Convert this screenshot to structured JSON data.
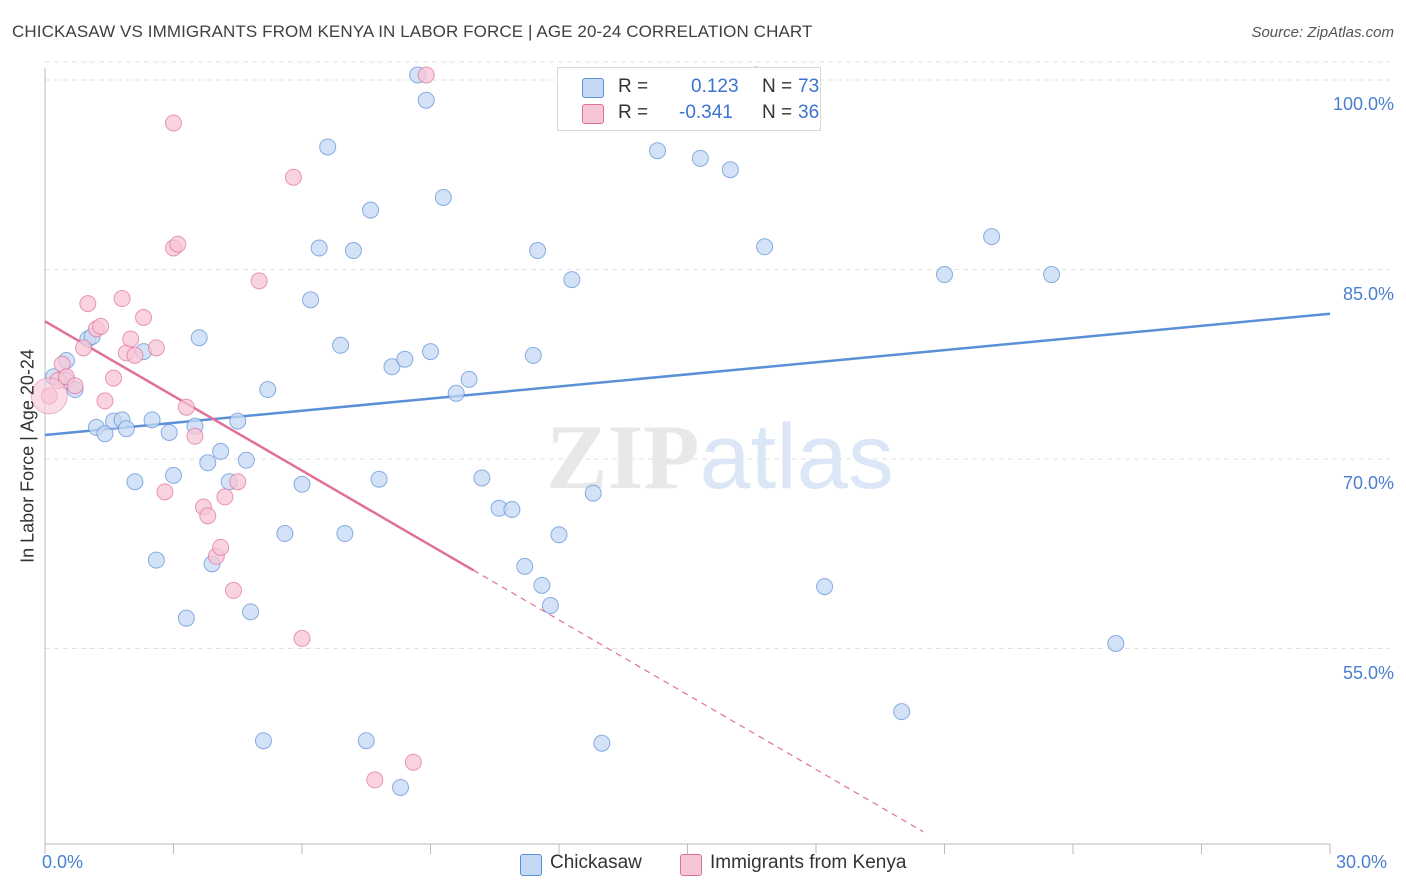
{
  "title": "CHICKASAW VS IMMIGRANTS FROM KENYA IN LABOR FORCE | AGE 20-24 CORRELATION CHART",
  "source": "Source: ZipAtlas.com",
  "watermark": "ZIPatlas",
  "colors": {
    "blue": "#5b8fd6",
    "blue_fill": "#c5d8f4",
    "pink": "#e0709a",
    "pink_fill": "#f7c6d6",
    "axis_text": "#4a7fd0"
  },
  "legend_top": [
    {
      "r_label": "R =",
      "r": "0.123",
      "n_label": "N =",
      "n": "73"
    },
    {
      "r_label": "R =",
      "r": "-0.341",
      "n_label": "N =",
      "n": "36"
    }
  ],
  "chart_data": {
    "type": "scatter",
    "ylabel": "In Labor Force | Age 20-24",
    "xlim": [
      0,
      30
    ],
    "ylim": [
      40,
      100
    ],
    "x_tick_labels": [
      "0.0%",
      "30.0%"
    ],
    "y_tick_values": [
      55,
      70,
      85,
      100
    ],
    "y_tick_labels": [
      "55.0%",
      "70.0%",
      "85.0%",
      "100.0%"
    ],
    "grid": true,
    "legend_position": "bottom",
    "series": [
      {
        "name": "Chickasaw",
        "color": "#5b8fd6",
        "trend": {
          "x": [
            0,
            30
          ],
          "y": [
            71.9,
            81.5
          ]
        },
        "points": [
          [
            0.2,
            76.5
          ],
          [
            0.5,
            76.2
          ],
          [
            0.5,
            77.8
          ],
          [
            0.7,
            75.5
          ],
          [
            1.0,
            79.5
          ],
          [
            1.1,
            79.7
          ],
          [
            1.2,
            72.5
          ],
          [
            1.4,
            72.0
          ],
          [
            1.6,
            73.0
          ],
          [
            1.8,
            73.1
          ],
          [
            1.9,
            72.4
          ],
          [
            2.1,
            68.2
          ],
          [
            2.3,
            78.5
          ],
          [
            2.5,
            73.1
          ],
          [
            2.6,
            62.0
          ],
          [
            2.9,
            72.1
          ],
          [
            3.0,
            68.7
          ],
          [
            3.3,
            57.4
          ],
          [
            3.5,
            72.6
          ],
          [
            3.6,
            79.6
          ],
          [
            3.8,
            69.7
          ],
          [
            3.9,
            61.7
          ],
          [
            4.1,
            70.6
          ],
          [
            4.3,
            68.2
          ],
          [
            4.5,
            73.0
          ],
          [
            4.7,
            69.9
          ],
          [
            4.8,
            57.9
          ],
          [
            5.1,
            47.7
          ],
          [
            5.2,
            75.5
          ],
          [
            5.6,
            64.1
          ],
          [
            6.0,
            68.0
          ],
          [
            6.2,
            82.6
          ],
          [
            6.4,
            86.7
          ],
          [
            6.6,
            94.7
          ],
          [
            6.9,
            79.0
          ],
          [
            7.0,
            64.1
          ],
          [
            7.2,
            86.5
          ],
          [
            7.5,
            47.7
          ],
          [
            7.6,
            89.7
          ],
          [
            7.8,
            68.4
          ],
          [
            8.1,
            77.3
          ],
          [
            8.3,
            44.0
          ],
          [
            8.4,
            77.9
          ],
          [
            8.7,
            100.4
          ],
          [
            8.9,
            98.4
          ],
          [
            9.0,
            78.5
          ],
          [
            9.3,
            90.7
          ],
          [
            9.6,
            75.2
          ],
          [
            9.9,
            76.3
          ],
          [
            10.2,
            68.5
          ],
          [
            10.6,
            66.1
          ],
          [
            10.9,
            66.0
          ],
          [
            11.2,
            61.5
          ],
          [
            11.4,
            78.2
          ],
          [
            11.5,
            86.5
          ],
          [
            11.6,
            60.0
          ],
          [
            11.8,
            58.4
          ],
          [
            12.0,
            64.0
          ],
          [
            12.3,
            84.2
          ],
          [
            13.0,
            47.5
          ],
          [
            13.5,
            100.3
          ],
          [
            14.3,
            94.4
          ],
          [
            15.3,
            93.8
          ],
          [
            16.0,
            92.9
          ],
          [
            16.6,
            100.4
          ],
          [
            16.8,
            86.8
          ],
          [
            18.2,
            59.9
          ],
          [
            20.0,
            50.0
          ],
          [
            21.0,
            84.6
          ],
          [
            22.1,
            87.6
          ],
          [
            23.5,
            84.6
          ],
          [
            25.0,
            55.4
          ],
          [
            12.8,
            67.3
          ]
        ]
      },
      {
        "name": "Immigrants from Kenya",
        "color": "#e0709a",
        "trend": {
          "x": [
            0,
            10
          ],
          "y": [
            80.9,
            61.2
          ]
        },
        "trend_dashed": {
          "x": [
            10,
            20.5
          ],
          "y": [
            61.2,
            40.5
          ]
        },
        "points": [
          [
            0.1,
            75.0
          ],
          [
            0.3,
            76.2
          ],
          [
            0.4,
            77.5
          ],
          [
            0.5,
            76.5
          ],
          [
            0.7,
            75.8
          ],
          [
            0.9,
            78.8
          ],
          [
            1.0,
            82.3
          ],
          [
            1.2,
            80.3
          ],
          [
            1.3,
            80.5
          ],
          [
            1.4,
            74.6
          ],
          [
            1.6,
            76.4
          ],
          [
            1.8,
            82.7
          ],
          [
            1.9,
            78.4
          ],
          [
            2.0,
            79.5
          ],
          [
            2.1,
            78.2
          ],
          [
            2.3,
            81.2
          ],
          [
            2.6,
            78.8
          ],
          [
            2.8,
            67.4
          ],
          [
            3.0,
            86.7
          ],
          [
            3.1,
            87.0
          ],
          [
            3.3,
            74.1
          ],
          [
            3.5,
            71.8
          ],
          [
            3.7,
            66.2
          ],
          [
            3.8,
            65.5
          ],
          [
            4.0,
            62.3
          ],
          [
            4.1,
            63.0
          ],
          [
            4.2,
            67.0
          ],
          [
            4.4,
            59.6
          ],
          [
            4.5,
            68.2
          ],
          [
            5.0,
            84.1
          ],
          [
            5.8,
            92.3
          ],
          [
            6.0,
            55.8
          ],
          [
            7.7,
            44.6
          ],
          [
            8.6,
            46.0
          ],
          [
            8.9,
            100.4
          ],
          [
            3.0,
            96.6
          ]
        ]
      }
    ]
  }
}
